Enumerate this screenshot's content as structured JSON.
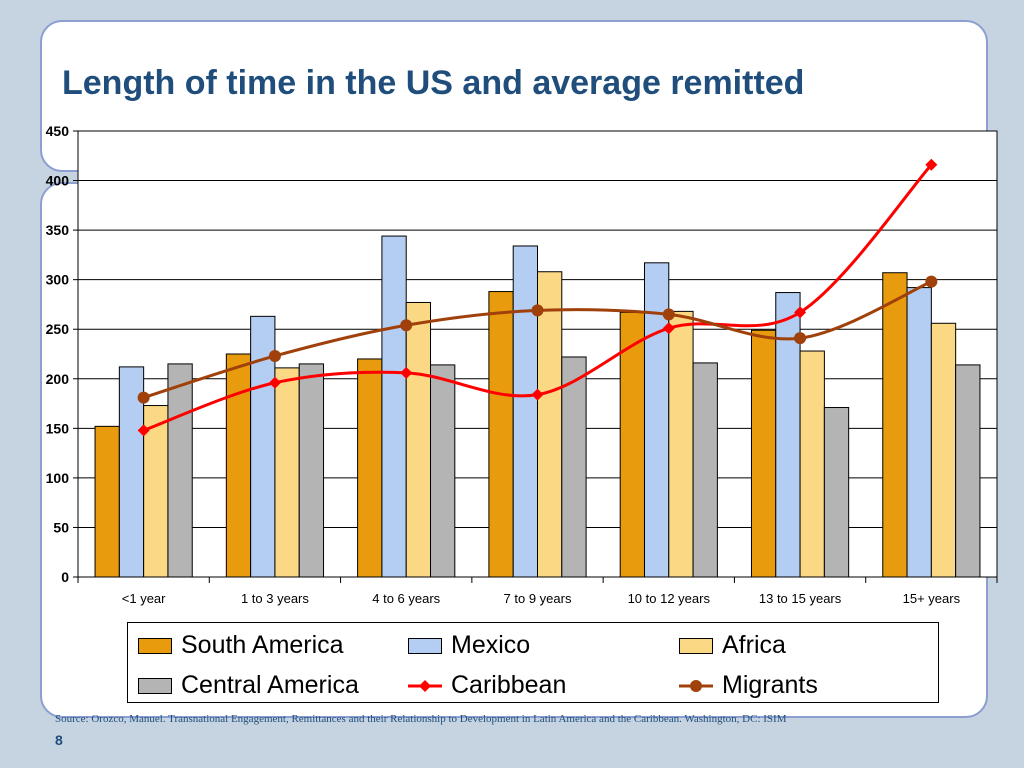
{
  "slide": {
    "title": "Length of time in the US and average remitted",
    "source": "Source: Orozco, Manuel. Transnational Engagement, Remittances and their Relationship to Development in Latin America and the Caribbean. Washington, DC: ISIM",
    "slide_number": "8"
  },
  "legend": {
    "south_america": "South America",
    "mexico": "Mexico",
    "africa": "Africa",
    "central_america": "Central America",
    "caribbean": "Caribbean",
    "migrants": "Migrants"
  },
  "colors": {
    "south_america": "#e89b0c",
    "mexico": "#b4cdf2",
    "africa": "#fbd884",
    "central_america": "#b4b4b4",
    "caribbean": "#ff0000",
    "migrants": "#a0400a",
    "title": "#1f4e7c"
  },
  "chart_data": {
    "type": "bar",
    "categories": [
      "<1 year",
      "1 to 3 years",
      "4 to 6 years",
      "7 to 9 years",
      "10 to 12 years",
      "13 to 15 years",
      "15+ years"
    ],
    "ylim": [
      0,
      450
    ],
    "yticks": [
      0,
      50,
      100,
      150,
      200,
      250,
      300,
      350,
      400,
      450
    ],
    "grid": true,
    "series": [
      {
        "name": "South America",
        "type": "bar",
        "values": [
          152,
          225,
          220,
          288,
          267,
          249,
          307
        ]
      },
      {
        "name": "Mexico",
        "type": "bar",
        "values": [
          212,
          263,
          344,
          334,
          317,
          287,
          292
        ]
      },
      {
        "name": "Africa",
        "type": "bar",
        "values": [
          173,
          211,
          277,
          308,
          268,
          228,
          256
        ]
      },
      {
        "name": "Central America",
        "type": "bar",
        "values": [
          215,
          215,
          214,
          222,
          216,
          171,
          214
        ]
      },
      {
        "name": "Caribbean",
        "type": "line",
        "values": [
          148,
          196,
          206,
          184,
          251,
          267,
          416
        ]
      },
      {
        "name": "Migrants",
        "type": "line",
        "values": [
          181,
          223,
          254,
          269,
          265,
          241,
          298
        ]
      }
    ],
    "legend_position": "bottom"
  }
}
